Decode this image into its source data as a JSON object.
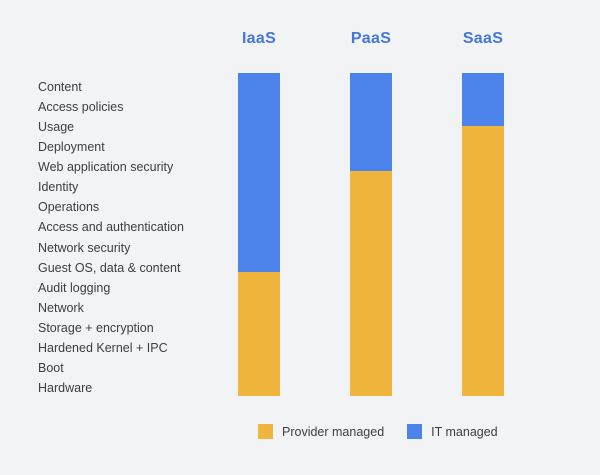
{
  "page": {
    "background_color": "#f1f3f4"
  },
  "chart_data": {
    "type": "bar",
    "variant": "stacked-vertical-columns",
    "title": "",
    "categories": [
      "IaaS",
      "PaaS",
      "SaaS"
    ],
    "row_labels": [
      "Content",
      "Access policies",
      "Usage",
      "Deployment",
      "Web application security",
      "Identity",
      "Operations",
      "Access and authentication",
      "Network security",
      "Guest OS, data & content",
      "Audit logging",
      "Network",
      "Storage + encryption",
      "Hardened Kernel + IPC",
      "Boot",
      "Hardware"
    ],
    "series": [
      {
        "name": "IT managed",
        "color": "#4d84ec",
        "values_pct": [
          61.6,
          30.2,
          16.3
        ]
      },
      {
        "name": "Provider managed",
        "color": "#f0b53d",
        "values_pct": [
          38.4,
          69.8,
          83.7
        ]
      }
    ],
    "columns": [
      {
        "label": "IaaS",
        "it_managed_pct": 61.6,
        "provider_managed_pct": 38.4,
        "it_managed_rows": "Content through Guest OS, data & content",
        "provider_managed_rows": "Audit logging through Hardware"
      },
      {
        "label": "PaaS",
        "it_managed_pct": 30.2,
        "provider_managed_pct": 69.8,
        "it_managed_rows": "Content through Web application security",
        "provider_managed_rows": "Identity through Hardware"
      },
      {
        "label": "SaaS",
        "it_managed_pct": 16.3,
        "provider_managed_pct": 83.7,
        "it_managed_rows": "Content through Usage",
        "provider_managed_rows": "Deployment through Hardware"
      }
    ],
    "legend": [
      {
        "label": "Provider managed",
        "color": "#f0b53d"
      },
      {
        "label": "IT managed",
        "color": "#4d84ec"
      }
    ],
    "legend_position": "bottom",
    "header_color": "#4577db",
    "label_color": "#3c4043",
    "grid": false
  }
}
